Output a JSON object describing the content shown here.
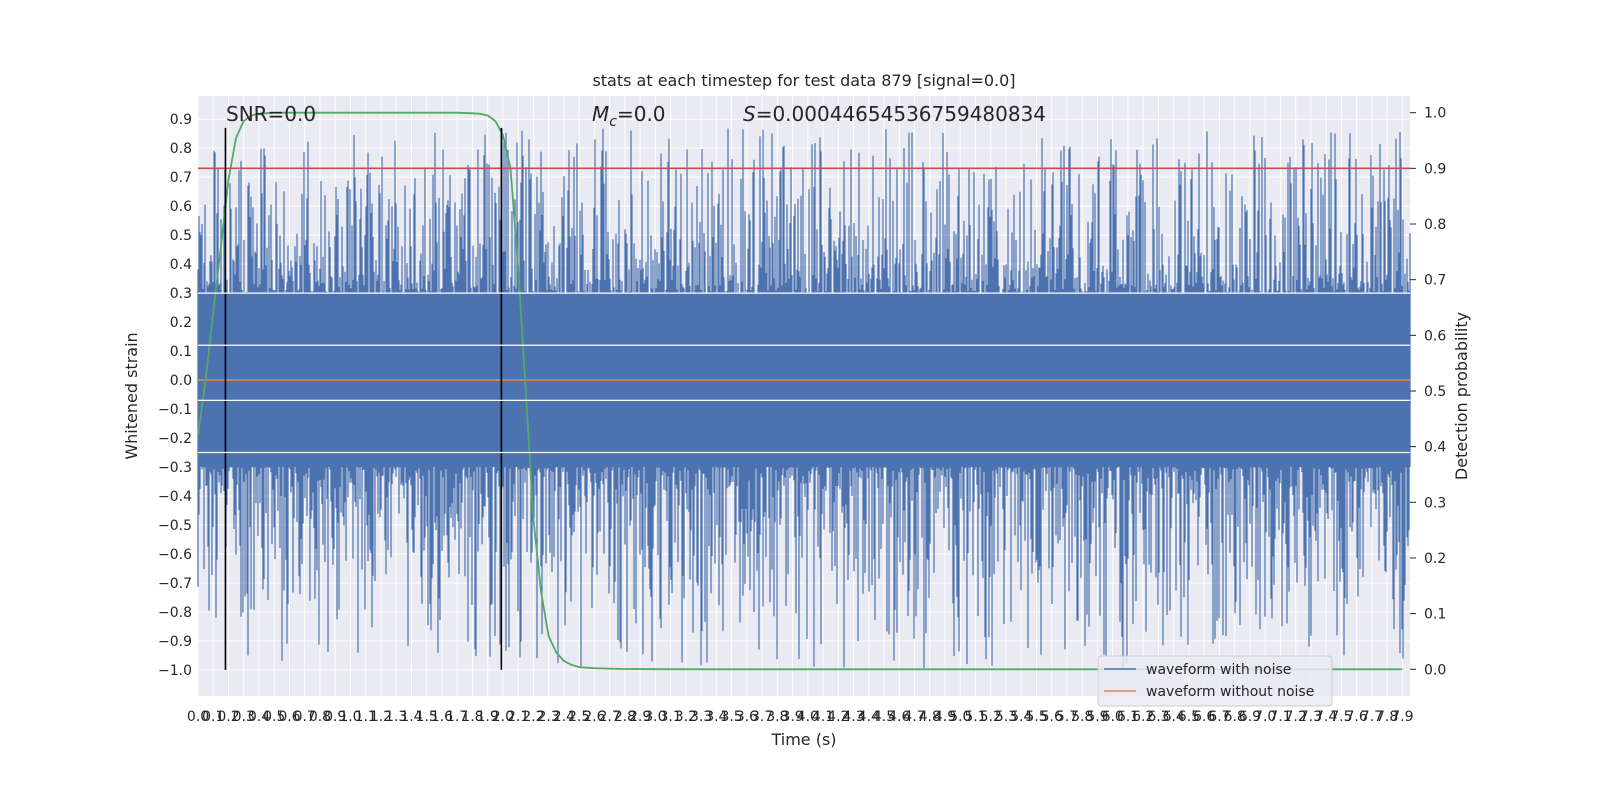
{
  "chart_data": {
    "type": "line",
    "title": "stats at each timestep for test data 879 [signal=0.0]",
    "xlabel": "Time (s)",
    "ylabel": "Whitened strain",
    "y2label": "Detection probability",
    "xlim": [
      0.0,
      7.95
    ],
    "ylim": [
      -1.09,
      0.98
    ],
    "y2lim": [
      -0.048,
      1.03
    ],
    "xticks": [
      "0.0",
      "0.1",
      "0.2",
      "0.3",
      "0.4",
      "0.5",
      "0.6",
      "0.7",
      "0.8",
      "0.9",
      "1.0",
      "1.1",
      "1.2",
      "1.3",
      "1.4",
      "1.5",
      "1.6",
      "1.7",
      "1.8",
      "1.9",
      "2.0",
      "2.1",
      "2.2",
      "2.3",
      "2.4",
      "2.5",
      "2.6",
      "2.7",
      "2.8",
      "2.9",
      "3.0",
      "3.1",
      "3.2",
      "3.3",
      "3.4",
      "3.5",
      "3.6",
      "3.7",
      "3.8",
      "3.9",
      "4.0",
      "4.1",
      "4.2",
      "4.3",
      "4.4",
      "4.5",
      "4.6",
      "4.7",
      "4.8",
      "4.9",
      "5.0",
      "5.1",
      "5.2",
      "5.3",
      "5.4",
      "5.5",
      "5.6",
      "5.7",
      "5.8",
      "5.9",
      "6.0",
      "6.1",
      "6.2",
      "6.3",
      "6.4",
      "6.5",
      "6.6",
      "6.7",
      "6.8",
      "6.9",
      "7.0",
      "7.1",
      "7.2",
      "7.3",
      "7.4",
      "7.5",
      "7.6",
      "7.7",
      "7.8",
      "7.9"
    ],
    "yticks": [
      "0.9",
      "0.8",
      "0.7",
      "0.6",
      "0.5",
      "0.4",
      "0.3",
      "0.2",
      "0.1",
      "0.0",
      "-0.1",
      "-0.2",
      "-0.3",
      "-0.4",
      "-0.5",
      "-0.6",
      "-0.7",
      "-0.8",
      "-0.9",
      "-1.0"
    ],
    "y2ticks": [
      "1.0",
      "0.9",
      "0.8",
      "0.7",
      "0.6",
      "0.5",
      "0.4",
      "0.3",
      "0.2",
      "0.1",
      "0.0"
    ],
    "annotations": {
      "snr": "SNR=0.0",
      "mc": "M",
      "mc_sub": "c",
      "mc_val": "=0.0",
      "s_sym": "S",
      "s_val": "=0.00044654536759480834"
    },
    "series": [
      {
        "name": "waveform with noise",
        "color": "#4c72b0",
        "style": "noise",
        "envelope_positive": 0.3,
        "envelope_negative": -0.3,
        "max": 0.87,
        "min": -1.0,
        "seed": 879
      },
      {
        "name": "waveform without noise",
        "color": "#dd8452",
        "x": [
          0.0,
          7.95
        ],
        "y": [
          0.0,
          0.0
        ]
      },
      {
        "name": "",
        "color": "#55a868",
        "axis": "right",
        "x": [
          0.0,
          0.05,
          0.1,
          0.15,
          0.2,
          0.25,
          0.3,
          0.35,
          0.4,
          0.5,
          0.6,
          0.8,
          1.0,
          1.2,
          1.4,
          1.6,
          1.7,
          1.8,
          1.85,
          1.9,
          1.95,
          2.0,
          2.05,
          2.1,
          2.15,
          2.2,
          2.25,
          2.3,
          2.35,
          2.4,
          2.45,
          2.5,
          2.6,
          2.7,
          2.8,
          3.0,
          3.5,
          4.0,
          5.0,
          6.0,
          7.0,
          7.9
        ],
        "y": [
          0.42,
          0.52,
          0.64,
          0.76,
          0.88,
          0.955,
          0.985,
          0.995,
          0.998,
          1.0,
          1.0,
          1.0,
          1.0,
          1.0,
          1.0,
          1.0,
          1.0,
          0.999,
          0.998,
          0.995,
          0.985,
          0.96,
          0.9,
          0.72,
          0.5,
          0.27,
          0.14,
          0.06,
          0.03,
          0.015,
          0.008,
          0.004,
          0.002,
          0.001,
          0.0005,
          0.0002,
          0.0,
          0.0,
          0.0,
          0.0,
          0.0,
          0.0
        ]
      },
      {
        "name": "",
        "color": "#c44e52",
        "axis": "right",
        "x": [
          0.0,
          7.95
        ],
        "y": [
          0.9,
          0.9
        ]
      }
    ],
    "vlines": [
      {
        "x": 0.18,
        "y_min": -1.0,
        "y_max": 0.87,
        "color": "#000000"
      },
      {
        "x": 1.99,
        "y_min": -1.0,
        "y_max": 0.87,
        "color": "#000000"
      }
    ],
    "legend": {
      "placement": "lower right",
      "entries": [
        "waveform with noise",
        "waveform without noise"
      ]
    },
    "grid": true,
    "background": "#eaeaf2"
  }
}
